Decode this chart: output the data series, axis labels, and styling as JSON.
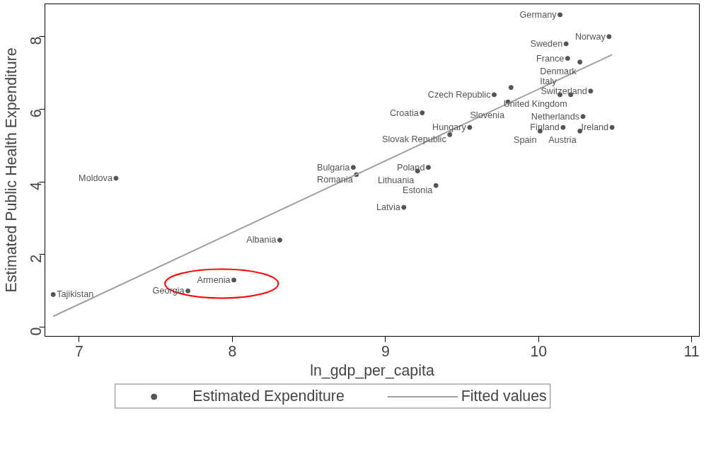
{
  "chart_data": {
    "type": "scatter",
    "xlabel": "ln_gdp_per_capita",
    "ylabel": "Estimated Public Health Expenditure",
    "xlim": [
      6.776,
      11.05
    ],
    "ylim": [
      -0.25,
      8.9
    ],
    "xticks": [
      7,
      8,
      9,
      10,
      11
    ],
    "yticks": [
      0,
      2,
      4,
      6,
      8
    ],
    "grid": false,
    "legend": "bottom",
    "series": [
      {
        "name": "Estimated Expenditure",
        "marker": "circle",
        "color": "#555555",
        "x": [
          10.14,
          10.46,
          10.18,
          10.19,
          10.27,
          9.82,
          10.34,
          9.71,
          10.21,
          10.14,
          9.8,
          9.24,
          10.29,
          9.55,
          10.16,
          10.48,
          10.01,
          10.27,
          9.42,
          8.79,
          8.81,
          9.28,
          9.21,
          9.33,
          9.12,
          7.24,
          8.31,
          8.01,
          7.71,
          6.83
        ],
        "values": [
          8.6,
          8.0,
          7.8,
          7.4,
          7.3,
          6.6,
          6.5,
          6.4,
          6.4,
          6.4,
          6.2,
          5.9,
          5.8,
          5.5,
          5.5,
          5.5,
          5.4,
          5.4,
          5.3,
          4.4,
          4.2,
          4.4,
          4.3,
          3.9,
          3.3,
          4.1,
          2.4,
          1.3,
          1.0,
          0.9
        ]
      },
      {
        "name": "Fitted values",
        "type": "line",
        "color": "#a0a0a0",
        "line_style": "solid",
        "x": [
          6.83,
          10.48
        ],
        "values": [
          0.3,
          7.5
        ]
      }
    ],
    "annotations": [
      {
        "text": "Germany",
        "x": 10.14,
        "y": 8.6
      },
      {
        "text": "Norway",
        "x": 10.46,
        "y": 8.0
      },
      {
        "text": "Sweden",
        "x": 10.18,
        "y": 7.8
      },
      {
        "text": "France",
        "x": 10.19,
        "y": 7.4
      },
      {
        "text": "Denmark",
        "x": 10.27,
        "y": 7.3
      },
      {
        "text": "Switzerland",
        "x": 10.34,
        "y": 6.5
      },
      {
        "text": "Czech Republic",
        "x": 9.71,
        "y": 6.4
      },
      {
        "text": "United Kingdom",
        "x": 10.21,
        "y": 6.4
      },
      {
        "text": "Italy",
        "x": 10.14,
        "y": 6.4
      },
      {
        "text": "Slovenia",
        "x": 9.8,
        "y": 6.2
      },
      {
        "text": "Croatia",
        "x": 9.24,
        "y": 5.9
      },
      {
        "text": "Netherlands",
        "x": 10.29,
        "y": 5.8
      },
      {
        "text": "Hungary",
        "x": 9.55,
        "y": 5.5
      },
      {
        "text": "Finland",
        "x": 10.16,
        "y": 5.5
      },
      {
        "text": "Ireland",
        "x": 10.48,
        "y": 5.5
      },
      {
        "text": "Spain",
        "x": 10.01,
        "y": 5.4
      },
      {
        "text": "Austria",
        "x": 10.27,
        "y": 5.4
      },
      {
        "text": "Slovak Republic",
        "x": 9.42,
        "y": 5.3
      },
      {
        "text": "Bulgaria",
        "x": 8.79,
        "y": 4.4
      },
      {
        "text": "Romania",
        "x": 8.81,
        "y": 4.2
      },
      {
        "text": "Poland",
        "x": 9.28,
        "y": 4.4
      },
      {
        "text": "Lithuania",
        "x": 9.21,
        "y": 4.3
      },
      {
        "text": "Estonia",
        "x": 9.33,
        "y": 3.9
      },
      {
        "text": "Latvia",
        "x": 9.12,
        "y": 3.3
      },
      {
        "text": "Moldova",
        "x": 7.24,
        "y": 4.1
      },
      {
        "text": "Albania",
        "x": 8.31,
        "y": 2.4
      },
      {
        "text": "Armenia",
        "x": 8.01,
        "y": 1.3
      },
      {
        "text": "Georgia",
        "x": 7.71,
        "y": 1.0
      },
      {
        "text": "Tajikistan",
        "x": 6.83,
        "y": 0.9
      }
    ]
  }
}
